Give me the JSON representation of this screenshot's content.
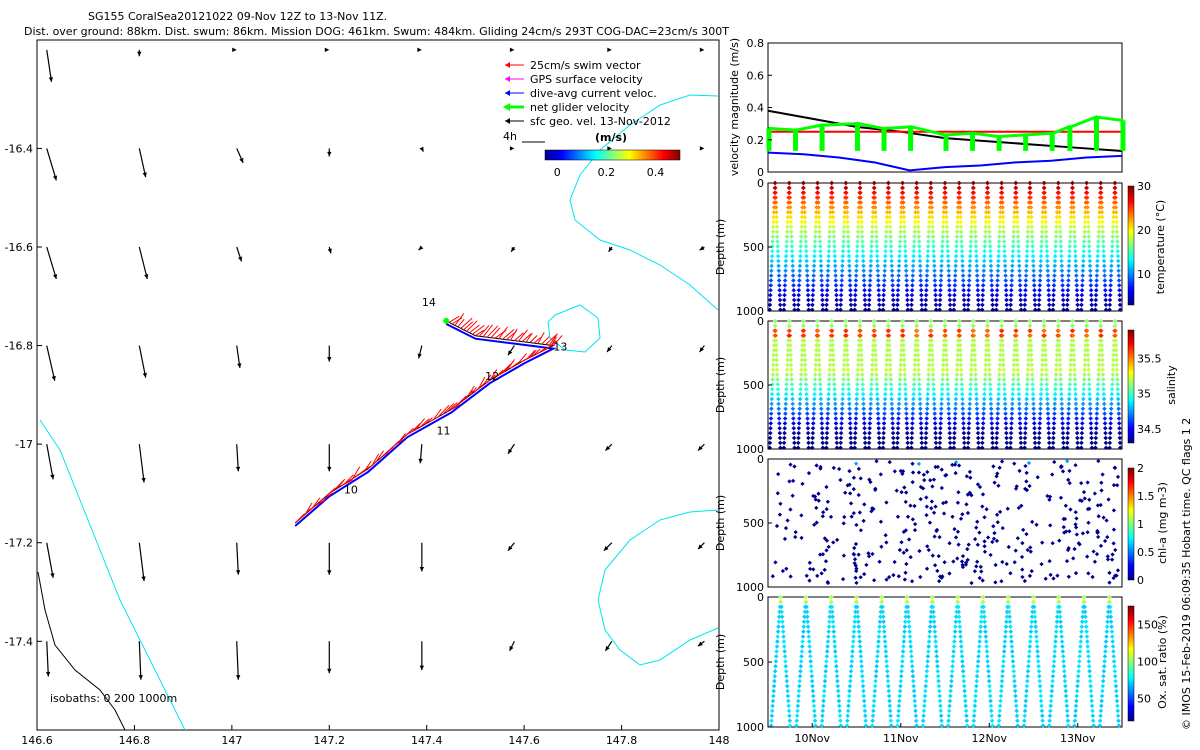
{
  "header": {
    "title_line1": "SG155 CoralSea20121022 09-Nov 12Z to 13-Nov 11Z.",
    "title_line2": "Dist. over ground: 88km. Dist. swum: 86km. Mission DOG: 461km. Swum: 484km. Gliding 24cm/s 293T COG-DAC=23cm/s 300T"
  },
  "credit": "© IMOS 15-Feb-2019 06:09:35 Hobart time. QC flags 1  2",
  "colors": {
    "swim": "#ff0000",
    "gps": "#ff00ff",
    "dac": "#0000ff",
    "net": "#00ff00",
    "geo": "#000000",
    "coast": "#00e5ee",
    "isobath": "#000000"
  },
  "chart_data": [
    {
      "type": "map",
      "xlim": [
        146.6,
        148.0
      ],
      "ylim": [
        -17.58,
        -16.18
      ],
      "x_ticks": [
        "146.6",
        "146.8",
        "147",
        "147.2",
        "147.4",
        "147.6",
        "147.8",
        "148"
      ],
      "x_tick_values": [
        146.6,
        146.8,
        147.0,
        147.2,
        147.4,
        147.6,
        147.8,
        148.0
      ],
      "y_ticks": [
        "-16.4",
        "-16.6",
        "-16.8",
        "-17",
        "-17.2",
        "-17.4"
      ],
      "y_tick_values": [
        -16.4,
        -16.6,
        -16.8,
        -17.0,
        -17.2,
        -17.4
      ],
      "legend": {
        "placement": "top-right",
        "entries": [
          {
            "label": "25cm/s swim vector",
            "color": "#ff0000"
          },
          {
            "label": "GPS surface velocity",
            "color": "#ff00ff"
          },
          {
            "label": "dive-avg current veloc.",
            "color": "#0000ff"
          },
          {
            "label": "net glider velocity",
            "color": "#00ff00"
          },
          {
            "label": "sfc geo. vel. 13-Nov-2012",
            "color": "#000000"
          }
        ]
      },
      "ref_label": "4h",
      "colorbar": {
        "label": "(m/s)",
        "ticks": [
          "0",
          "0.2",
          "0.4"
        ],
        "tick_values": [
          0,
          0.2,
          0.4
        ],
        "range": [
          -0.05,
          0.5
        ]
      },
      "isobaths_label": "isobaths: 0   200   1000m",
      "day_labels": [
        {
          "text": "10",
          "lon": 147.23,
          "lat": -17.1
        },
        {
          "text": "11",
          "lon": 147.42,
          "lat": -16.98
        },
        {
          "text": "12",
          "lon": 147.52,
          "lat": -16.87
        },
        {
          "text": "13",
          "lon": 147.66,
          "lat": -16.81
        },
        {
          "text": "14",
          "lon": 147.39,
          "lat": -16.72
        }
      ],
      "track": [
        [
          147.13,
          -17.16
        ],
        [
          147.2,
          -17.1
        ],
        [
          147.28,
          -17.05
        ],
        [
          147.36,
          -16.98
        ],
        [
          147.45,
          -16.93
        ],
        [
          147.53,
          -16.87
        ],
        [
          147.6,
          -16.83
        ],
        [
          147.66,
          -16.8
        ],
        [
          147.58,
          -16.79
        ],
        [
          147.5,
          -16.78
        ],
        [
          147.44,
          -16.75
        ]
      ],
      "geo_vectors": {
        "lons": [
          146.62,
          146.81,
          147.01,
          147.2,
          147.39,
          147.58,
          147.78,
          147.97
        ],
        "lats": [
          -16.2,
          -16.4,
          -16.6,
          -16.8,
          -17.0,
          -17.2,
          -17.4
        ],
        "u": [
          [
            0.03,
            0.0,
            0.0,
            0.0,
            0.0,
            0.0,
            0.0,
            0.0
          ],
          [
            0.06,
            0.04,
            0.04,
            0.0,
            0.01,
            0.0,
            0.0,
            0.0
          ],
          [
            0.06,
            0.05,
            0.03,
            0.01,
            -0.02,
            -0.02,
            -0.02,
            -0.03
          ],
          [
            0.05,
            0.04,
            0.02,
            0.0,
            -0.02,
            -0.04,
            -0.03,
            -0.03
          ],
          [
            0.04,
            0.03,
            0.01,
            0.0,
            -0.01,
            -0.04,
            -0.04,
            -0.04
          ],
          [
            0.04,
            0.03,
            0.01,
            0.0,
            0.0,
            -0.04,
            -0.05,
            -0.04
          ],
          [
            0.01,
            0.01,
            0.01,
            0.0,
            0.0,
            -0.03,
            -0.04,
            -0.04
          ]
        ],
        "v": [
          [
            -0.2,
            -0.04,
            0.0,
            0.0,
            0.0,
            0.0,
            0.0,
            0.0
          ],
          [
            -0.2,
            -0.18,
            -0.09,
            -0.05,
            -0.02,
            0.0,
            0.0,
            0.0
          ],
          [
            -0.2,
            -0.2,
            -0.09,
            -0.04,
            -0.02,
            -0.03,
            -0.03,
            -0.02
          ],
          [
            -0.22,
            -0.2,
            -0.14,
            -0.1,
            -0.08,
            -0.06,
            -0.04,
            -0.04
          ],
          [
            -0.22,
            -0.24,
            -0.17,
            -0.17,
            -0.12,
            -0.06,
            -0.04,
            -0.04
          ],
          [
            -0.22,
            -0.24,
            -0.2,
            -0.2,
            -0.18,
            -0.05,
            -0.05,
            -0.04
          ],
          [
            -0.22,
            -0.24,
            -0.24,
            -0.2,
            -0.18,
            -0.06,
            -0.06,
            -0.03
          ]
        ]
      }
    },
    {
      "type": "line",
      "ylabel": "velocity magnitude (m/s)",
      "ylim": [
        0,
        0.8
      ],
      "y_ticks": [
        "0",
        "0.2",
        "0.4",
        "0.6",
        "0.8"
      ],
      "y_tick_values": [
        0,
        0.2,
        0.4,
        0.6,
        0.8
      ],
      "xlim": [
        0,
        4
      ],
      "series": [
        {
          "color": "#000000",
          "x": [
            0,
            0.5,
            1,
            1.5,
            2,
            2.5,
            3,
            3.5,
            4
          ],
          "y": [
            0.38,
            0.33,
            0.28,
            0.25,
            0.21,
            0.19,
            0.17,
            0.15,
            0.13
          ]
        },
        {
          "color": "#ff0000",
          "x": [
            0,
            4
          ],
          "y": [
            0.25,
            0.25
          ]
        },
        {
          "color": "#00ff00",
          "x": [
            0,
            0.3,
            0.6,
            1.0,
            1.3,
            1.6,
            2.0,
            2.3,
            2.6,
            2.9,
            3.2,
            3.4,
            3.7,
            4.0
          ],
          "y": [
            0.27,
            0.26,
            0.29,
            0.3,
            0.27,
            0.28,
            0.23,
            0.24,
            0.22,
            0.23,
            0.24,
            0.28,
            0.34,
            0.32
          ]
        },
        {
          "color": "#0000ff",
          "x": [
            0,
            0.4,
            0.8,
            1.2,
            1.6,
            2.0,
            2.4,
            2.8,
            3.2,
            3.6,
            4.0
          ],
          "y": [
            0.12,
            0.11,
            0.09,
            0.06,
            0.01,
            0.03,
            0.04,
            0.06,
            0.07,
            0.09,
            0.1
          ]
        }
      ]
    },
    {
      "type": "scatter",
      "ylabel": "Depth (m)",
      "ylim": [
        1000,
        0
      ],
      "y_ticks": [
        "0",
        "500",
        "1000"
      ],
      "y_tick_values": [
        0,
        500,
        1000
      ],
      "xlim": [
        0,
        4
      ],
      "dives": 25,
      "colorbar": {
        "label": "temperature (°C)",
        "ticks": [
          "10",
          "20",
          "30"
        ],
        "tick_values": [
          10,
          20,
          30
        ],
        "range": [
          3,
          30
        ]
      }
    },
    {
      "type": "scatter",
      "ylabel": "Depth (m)",
      "ylim": [
        1000,
        0
      ],
      "y_ticks": [
        "0",
        "500",
        "1000"
      ],
      "y_tick_values": [
        0,
        500,
        1000
      ],
      "xlim": [
        0,
        4
      ],
      "dives": 25,
      "colorbar": {
        "label": "salinity",
        "ticks": [
          "34.5",
          "35",
          "35.5"
        ],
        "tick_values": [
          34.5,
          35,
          35.5
        ],
        "range": [
          34.3,
          35.9
        ]
      }
    },
    {
      "type": "scatter",
      "ylabel": "Depth (m)",
      "ylim": [
        1000,
        0
      ],
      "y_ticks": [
        "0",
        "500",
        "1000"
      ],
      "y_tick_values": [
        0,
        500,
        1000
      ],
      "xlim": [
        0,
        4
      ],
      "dives": 25,
      "colorbar": {
        "label": "chl-a (mg m-3)",
        "ticks": [
          "0",
          "0.5",
          "1",
          "1.5",
          "2"
        ],
        "tick_values": [
          0,
          0.5,
          1,
          1.5,
          2
        ],
        "range": [
          0,
          2
        ]
      }
    },
    {
      "type": "scatter",
      "ylabel": "Depth (m)",
      "ylim": [
        1000,
        0
      ],
      "y_ticks": [
        "0",
        "500",
        "1000"
      ],
      "y_tick_values": [
        0,
        500,
        1000
      ],
      "xlim": [
        0,
        4
      ],
      "dives": 14,
      "x_ticks": [
        "10Nov",
        "11Nov",
        "12Nov",
        "13Nov"
      ],
      "x_tick_values": [
        0.5,
        1.5,
        2.5,
        3.5
      ],
      "colorbar": {
        "label": "Ox. sat. ratio (%)",
        "ticks": [
          "50",
          "100",
          "150"
        ],
        "tick_values": [
          50,
          100,
          150
        ],
        "range": [
          20,
          175
        ]
      }
    }
  ]
}
